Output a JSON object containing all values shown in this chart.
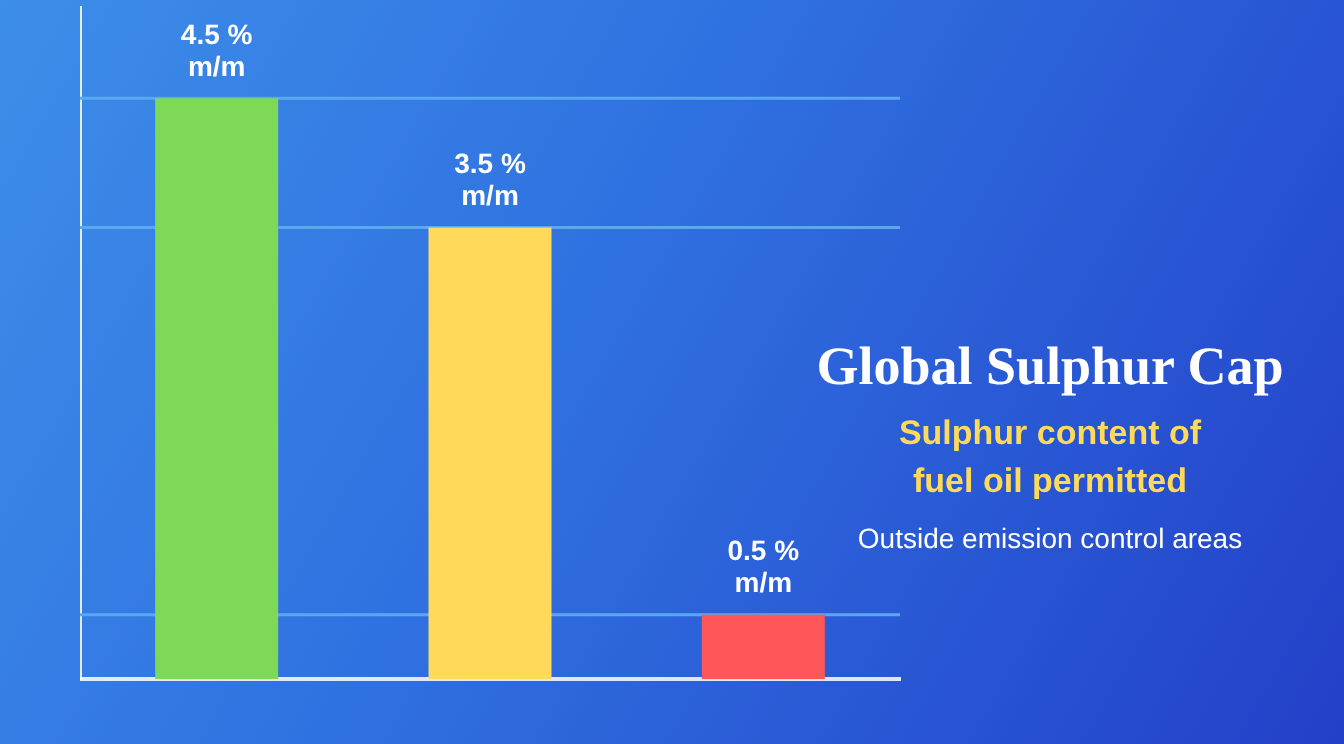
{
  "chart_data": {
    "type": "bar",
    "title": "Global Sulphur Cap",
    "subtitle": "Sulphur content of\nfuel oil permitted",
    "annotations": [
      "Outside emission control areas"
    ],
    "categories": [
      null,
      null,
      null
    ],
    "values": [
      4.5,
      3.5,
      0.5
    ],
    "colors": [
      "#7ed957",
      "#ffd95a",
      "#ff5757"
    ],
    "value_labels": [
      "4.5 %\nm/m",
      "3.5 %\nm/m",
      "0.5 %\nm/m"
    ],
    "ylim": [
      0,
      5.2
    ],
    "ref_lines": [
      {
        "axis": "y",
        "value": 4.5,
        "color": "#5aa8f0"
      },
      {
        "axis": "y",
        "value": 3.5,
        "color": "#5aa8f0"
      },
      {
        "axis": "y",
        "value": 0.5,
        "color": "#5aa8f0"
      }
    ],
    "legend": false
  }
}
